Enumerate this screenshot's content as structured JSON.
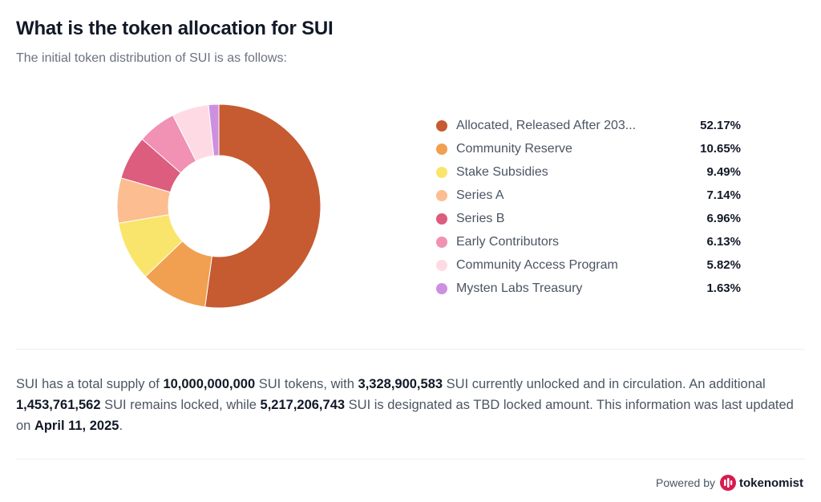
{
  "header": {
    "title": "What is the token allocation for SUI",
    "subtitle": "The initial token distribution of SUI is as follows:"
  },
  "chart_data": {
    "type": "pie",
    "variant": "donut",
    "categories": [
      "Allocated, Released After 203...",
      "Community Reserve",
      "Stake Subsidies",
      "Series A",
      "Series B",
      "Early Contributors",
      "Community Access Program",
      "Mysten Labs Treasury"
    ],
    "values": [
      52.17,
      10.65,
      9.49,
      7.14,
      6.96,
      6.13,
      5.82,
      1.63
    ],
    "labels": [
      "52.17%",
      "10.65%",
      "9.49%",
      "7.14%",
      "6.96%",
      "6.13%",
      "5.82%",
      "1.63%"
    ],
    "colors": [
      "#c65a31",
      "#f0a050",
      "#fae56c",
      "#fcbd90",
      "#dc5d7e",
      "#f191b4",
      "#fedbe4",
      "#cd90e0"
    ],
    "legend": "right"
  },
  "summary": {
    "p1": "SUI has a total supply of ",
    "total_supply": "10,000,000,000",
    "p2": " SUI tokens, with ",
    "unlocked": "3,328,900,583",
    "p3": " SUI currently unlocked and in circulation. An additional ",
    "locked": "1,453,761,562",
    "p4": " SUI remains locked, while ",
    "tbd": "5,217,206,743",
    "p5": " SUI is designated as TBD locked amount. This information was last updated on ",
    "date": "April 11, 2025",
    "p6": "."
  },
  "footer": {
    "powered_by": "Powered by",
    "brand": "tokenomist",
    "logo_icon": "tokenomist-logo-icon",
    "logo_color": "#d81b4f"
  }
}
